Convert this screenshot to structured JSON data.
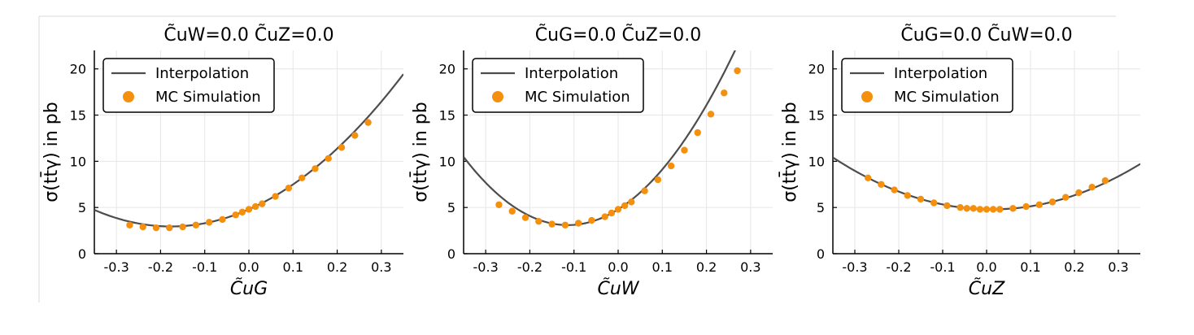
{
  "colors": {
    "curve": "#4d4d4d",
    "points": "#f5900f",
    "grid": "#e6e6e6",
    "frame": "#000000",
    "background": "#ffffff"
  },
  "chart_data": [
    {
      "type": "line",
      "title": "C̃uW=0.0   C̃uZ=0.0",
      "xlabel": "C̃uG",
      "ylabel": "σ(tt̄γ) in pb",
      "xlim": [
        -0.35,
        0.35
      ],
      "ylim": [
        0,
        22
      ],
      "xticks": [
        -0.3,
        -0.2,
        -0.1,
        0.0,
        0.1,
        0.2,
        0.3
      ],
      "xtick_labels": [
        "-0.3",
        "-0.2",
        "-0.1",
        "0.0",
        "0.1",
        "0.2",
        "0.3"
      ],
      "yticks": [
        0,
        5,
        10,
        15,
        20
      ],
      "ytick_labels": [
        "0",
        "5",
        "10",
        "15",
        "20"
      ],
      "grid": true,
      "legend": "top-left",
      "series": [
        {
          "name": "Interpolation",
          "kind": "line",
          "coefficients": [
            4.8,
            21.0,
            59.5
          ]
        },
        {
          "name": "MC Simulation",
          "kind": "scatter",
          "x": [
            -0.27,
            -0.24,
            -0.21,
            -0.18,
            -0.15,
            -0.12,
            -0.09,
            -0.06,
            -0.03,
            -0.015,
            0.0,
            0.015,
            0.03,
            0.06,
            0.09,
            0.12,
            0.15,
            0.18,
            0.21,
            0.24,
            0.27
          ],
          "y": [
            3.1,
            2.9,
            2.8,
            2.8,
            2.9,
            3.1,
            3.4,
            3.7,
            4.2,
            4.5,
            4.8,
            5.1,
            5.4,
            6.2,
            7.1,
            8.2,
            9.2,
            10.3,
            11.5,
            12.8,
            14.2
          ]
        }
      ]
    },
    {
      "type": "line",
      "title": "C̃uG=0.0   C̃uZ=0.0",
      "xlabel": "C̃uW",
      "ylabel": "σ(tt̄γ) in pb",
      "xlim": [
        -0.35,
        0.35
      ],
      "ylim": [
        0,
        22
      ],
      "xticks": [
        -0.3,
        -0.2,
        -0.1,
        0.0,
        0.1,
        0.2,
        0.3
      ],
      "xtick_labels": [
        "-0.3",
        "-0.2",
        "-0.1",
        "0.0",
        "0.1",
        "0.2",
        "0.3"
      ],
      "yticks": [
        0,
        5,
        10,
        15,
        20
      ],
      "ytick_labels": [
        "0",
        "5",
        "10",
        "15",
        "20"
      ],
      "grid": true,
      "legend": "top-left",
      "series": [
        {
          "name": "Interpolation",
          "kind": "line",
          "coefficients": [
            4.8,
            30.0,
            132.0
          ]
        },
        {
          "name": "MC Simulation",
          "kind": "scatter",
          "x": [
            -0.27,
            -0.24,
            -0.21,
            -0.18,
            -0.15,
            -0.12,
            -0.09,
            -0.06,
            -0.03,
            -0.015,
            0.0,
            0.015,
            0.03,
            0.06,
            0.09,
            0.12,
            0.15,
            0.18,
            0.21,
            0.24,
            0.27
          ],
          "y": [
            5.3,
            4.6,
            3.9,
            3.5,
            3.2,
            3.1,
            3.3,
            3.6,
            4.0,
            4.4,
            4.8,
            5.2,
            5.6,
            6.8,
            8.0,
            9.5,
            11.2,
            13.1,
            15.1,
            17.4,
            19.8
          ]
        }
      ]
    },
    {
      "type": "line",
      "title": "C̃uG=0.0   C̃uW=0.0",
      "xlabel": "C̃uZ",
      "ylabel": "σ(tt̄γ) in pb",
      "xlim": [
        -0.35,
        0.35
      ],
      "ylim": [
        0,
        22
      ],
      "xticks": [
        -0.3,
        -0.2,
        -0.1,
        0.0,
        0.1,
        0.2,
        0.3
      ],
      "xtick_labels": [
        "-0.3",
        "-0.2",
        "-0.1",
        "0.0",
        "0.1",
        "0.2",
        "0.3"
      ],
      "yticks": [
        0,
        5,
        10,
        15,
        20
      ],
      "ytick_labels": [
        "0",
        "5",
        "10",
        "15",
        "20"
      ],
      "grid": true,
      "legend": "top-left",
      "series": [
        {
          "name": "Interpolation",
          "kind": "line",
          "coefficients": [
            4.8,
            -1.0,
            43.0
          ]
        },
        {
          "name": "MC Simulation",
          "kind": "scatter",
          "x": [
            -0.27,
            -0.24,
            -0.21,
            -0.18,
            -0.15,
            -0.12,
            -0.09,
            -0.06,
            -0.045,
            -0.03,
            -0.015,
            0.0,
            0.015,
            0.03,
            0.06,
            0.09,
            0.12,
            0.15,
            0.18,
            0.21,
            0.24,
            0.27
          ],
          "y": [
            8.2,
            7.5,
            6.9,
            6.3,
            5.9,
            5.5,
            5.2,
            5.0,
            4.9,
            4.9,
            4.8,
            4.8,
            4.8,
            4.8,
            4.9,
            5.1,
            5.3,
            5.6,
            6.1,
            6.6,
            7.2,
            7.9
          ]
        }
      ]
    }
  ]
}
